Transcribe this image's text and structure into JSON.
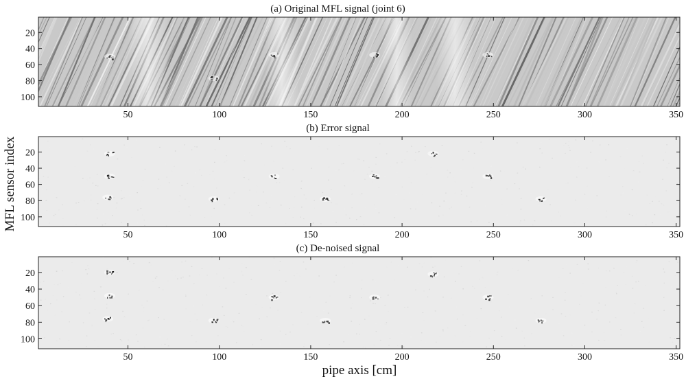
{
  "figure": {
    "ylabel": "MFL sensor index",
    "xlabel": "pipe axis [cm]"
  },
  "chart_data": [
    {
      "type": "heatmap",
      "title": "(a) Original MFL signal (joint 6)",
      "xlim": [
        1,
        352
      ],
      "ylim": [
        1,
        112
      ],
      "xticks": [
        50,
        100,
        150,
        200,
        250,
        300,
        350
      ],
      "yticks": [
        20,
        40,
        60,
        80,
        100
      ],
      "y_reversed": true,
      "colormap": "gray",
      "background": "diagonal-striations",
      "features": [
        {
          "x": 40,
          "y": 50
        },
        {
          "x": 97,
          "y": 77
        },
        {
          "x": 130,
          "y": 48
        },
        {
          "x": 185,
          "y": 48
        },
        {
          "x": 247,
          "y": 48
        }
      ]
    },
    {
      "type": "heatmap",
      "title": "(b) Error signal",
      "xlim": [
        1,
        352
      ],
      "ylim": [
        1,
        112
      ],
      "xticks": [
        50,
        100,
        150,
        200,
        250,
        300,
        350
      ],
      "yticks": [
        20,
        40,
        60,
        80,
        100
      ],
      "y_reversed": true,
      "colormap": "gray",
      "background": "uniform-light",
      "features": [
        {
          "x": 40,
          "y": 22
        },
        {
          "x": 40,
          "y": 50
        },
        {
          "x": 39,
          "y": 76
        },
        {
          "x": 97,
          "y": 78
        },
        {
          "x": 130,
          "y": 50
        },
        {
          "x": 185,
          "y": 50
        },
        {
          "x": 158,
          "y": 78
        },
        {
          "x": 217,
          "y": 22
        },
        {
          "x": 247,
          "y": 50
        },
        {
          "x": 276,
          "y": 78
        }
      ]
    },
    {
      "type": "heatmap",
      "title": "(c) De-noised signal",
      "xlim": [
        1,
        352
      ],
      "ylim": [
        1,
        112
      ],
      "xticks": [
        50,
        100,
        150,
        200,
        250,
        300,
        350
      ],
      "yticks": [
        20,
        40,
        60,
        80,
        100
      ],
      "y_reversed": true,
      "colormap": "gray",
      "background": "uniform-light",
      "features": [
        {
          "x": 40,
          "y": 20
        },
        {
          "x": 40,
          "y": 48
        },
        {
          "x": 39,
          "y": 76
        },
        {
          "x": 97,
          "y": 78
        },
        {
          "x": 130,
          "y": 50
        },
        {
          "x": 185,
          "y": 50
        },
        {
          "x": 158,
          "y": 78
        },
        {
          "x": 217,
          "y": 22
        },
        {
          "x": 247,
          "y": 50
        },
        {
          "x": 276,
          "y": 78
        }
      ]
    }
  ]
}
